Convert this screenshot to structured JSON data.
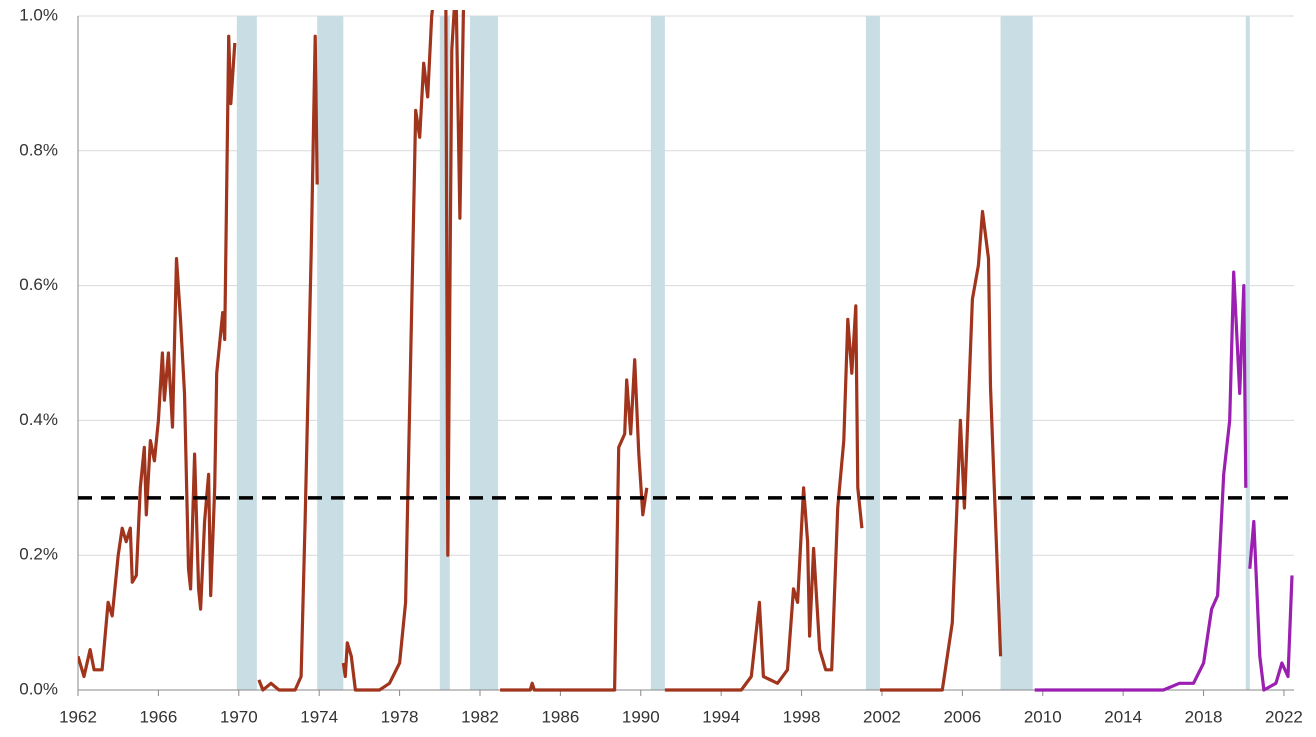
{
  "chart_data": {
    "type": "line",
    "xlim": [
      1962,
      2022.5
    ],
    "xticks": [
      1962,
      1966,
      1970,
      1974,
      1978,
      1982,
      1986,
      1990,
      1994,
      1998,
      2002,
      2006,
      2010,
      2014,
      2018,
      2022
    ],
    "ylim": [
      0,
      1
    ],
    "yticks": [
      {
        "value": 0,
        "label": "0.0%"
      },
      {
        "value": 0.2,
        "label": "0.2%"
      },
      {
        "value": 0.4,
        "label": "0.4%"
      },
      {
        "value": 0.6,
        "label": "0.6%"
      },
      {
        "value": 0.8,
        "label": "0.8%"
      },
      {
        "value": 1,
        "label": "1.0%"
      }
    ],
    "grid": true,
    "recessions": [
      [
        1969.9,
        1970.9
      ],
      [
        1973.9,
        1975.2
      ],
      [
        1980.0,
        1980.5
      ],
      [
        1981.5,
        1982.9
      ],
      [
        1990.5,
        1991.2
      ],
      [
        2001.2,
        2001.9
      ],
      [
        2007.9,
        2009.5
      ],
      [
        2020.1,
        2020.3
      ]
    ],
    "recession_color": "#c9dee4",
    "reference_line": 0.285,
    "series": [
      {
        "color": "#a0341c",
        "x": [
          1962.0,
          1962.3,
          1962.6,
          1962.8,
          1963.2,
          1963.5,
          1963.7,
          1964.0,
          1964.2,
          1964.4,
          1964.6,
          1964.7,
          1964.9,
          1965.1,
          1965.3,
          1965.4,
          1965.6,
          1965.8,
          1966.0,
          1966.2,
          1966.3,
          1966.5,
          1966.7,
          1966.9,
          1967.1,
          1967.3,
          1967.5,
          1967.6,
          1967.8,
          1968.0,
          1968.1,
          1968.3,
          1968.5,
          1968.6,
          1968.8,
          1968.9,
          1969.2,
          1969.3,
          1969.5,
          1969.6,
          1969.8,
          1970.4,
          1971.0,
          1971.2,
          1971.6,
          1972.0,
          1972.8,
          1973.1,
          1973.3,
          1973.6,
          1973.8,
          1973.9,
          1974.5,
          1975.2,
          1975.3,
          1975.4,
          1975.6,
          1975.8,
          1977.0,
          1977.5,
          1978.0,
          1978.3,
          1978.6,
          1978.8,
          1979.0,
          1979.2,
          1979.4,
          1979.6,
          1979.8,
          1980.3,
          1980.4,
          1980.6,
          1980.8,
          1981.0,
          1981.2,
          1982.0,
          1983.0,
          1984.5,
          1984.6,
          1984.7,
          1988.7,
          1988.9,
          1989.2,
          1989.3,
          1989.5,
          1989.7,
          1989.9,
          1990.1,
          1990.3,
          1990.8,
          1991.2,
          1995.0,
          1995.5,
          1995.9,
          1996.1,
          1996.8,
          1997.3,
          1997.6,
          1997.8,
          1998.1,
          1998.3,
          1998.4,
          1998.6,
          1998.9,
          1999.2,
          1999.5,
          1999.8,
          2000.1,
          2000.3,
          2000.5,
          2000.7,
          2000.8,
          2001.0,
          2001.5,
          2001.9,
          2005.0,
          2005.5,
          2005.9,
          2006.1,
          2006.5,
          2006.8,
          2007.0,
          2007.3,
          2007.4,
          2007.9
        ],
        "values": [
          0.05,
          0.02,
          0.06,
          0.03,
          0.03,
          0.13,
          0.11,
          0.2,
          0.24,
          0.22,
          0.24,
          0.16,
          0.17,
          0.3,
          0.36,
          0.26,
          0.37,
          0.34,
          0.4,
          0.5,
          0.43,
          0.5,
          0.39,
          0.64,
          0.55,
          0.44,
          0.18,
          0.15,
          0.35,
          0.15,
          0.12,
          0.25,
          0.32,
          0.14,
          0.3,
          0.47,
          0.56,
          0.52,
          0.97,
          0.87,
          0.96,
          null,
          0.015,
          0,
          0.01,
          0,
          0,
          0.02,
          0.25,
          0.65,
          0.97,
          0.75,
          null,
          0.04,
          0.02,
          0.07,
          0.05,
          0,
          0,
          0.01,
          0.04,
          0.13,
          0.56,
          0.86,
          0.82,
          0.93,
          0.88,
          1,
          1.05,
          1.05,
          0.2,
          0.95,
          1.05,
          0.7,
          1.05,
          null,
          0,
          0,
          0.01,
          0,
          0,
          0.36,
          0.38,
          0.46,
          0.38,
          0.49,
          0.35,
          0.26,
          0.3,
          null,
          0,
          0,
          0.02,
          0.13,
          0.02,
          0.01,
          0.03,
          0.15,
          0.13,
          0.3,
          0.22,
          0.08,
          0.21,
          0.06,
          0.03,
          0.03,
          0.27,
          0.37,
          0.55,
          0.47,
          0.57,
          0.3,
          0.24,
          null,
          0,
          0,
          0.1,
          0.4,
          0.27,
          0.58,
          0.63,
          0.71,
          0.64,
          0.45,
          0.05
        ]
      },
      {
        "color": "#9b1fb0",
        "x": [
          2009.6,
          2016.0,
          2016.8,
          2017.5,
          2018.0,
          2018.4,
          2018.7,
          2019.0,
          2019.3,
          2019.5,
          2019.8,
          2020.0,
          2020.1,
          2020.2,
          2020.3,
          2020.5,
          2020.8,
          2021.0,
          2021.6,
          2021.9,
          2022.2,
          2022.4
        ],
        "values": [
          0,
          0,
          0.01,
          0.01,
          0.04,
          0.12,
          0.14,
          0.32,
          0.4,
          0.62,
          0.44,
          0.6,
          0.3,
          null,
          0.18,
          0.25,
          0.05,
          0,
          0.01,
          0.04,
          0.02,
          0.17
        ]
      }
    ]
  }
}
